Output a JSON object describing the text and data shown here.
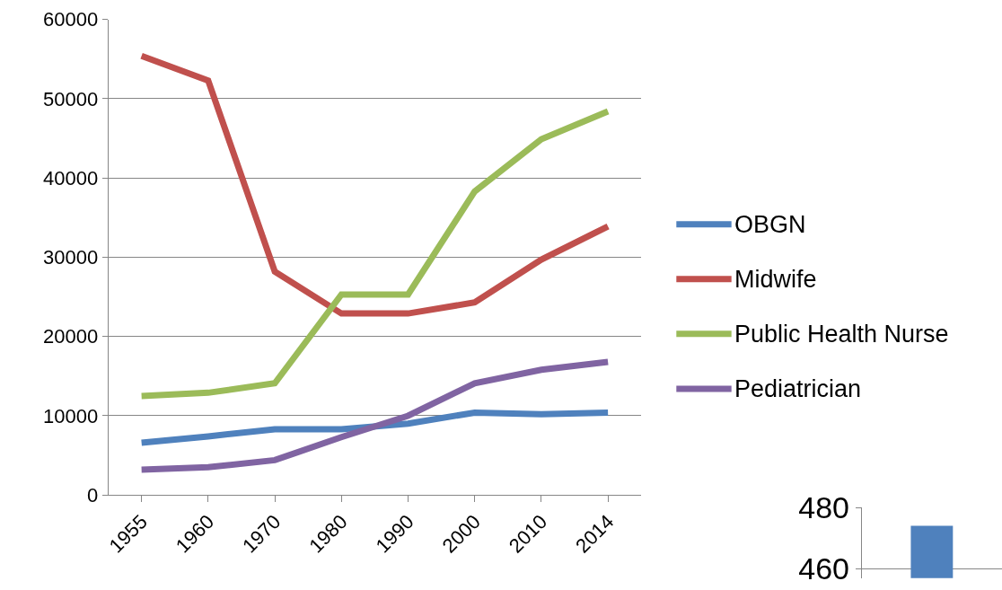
{
  "chart_data": [
    {
      "type": "line",
      "categories": [
        "1955",
        "1960",
        "1970",
        "1980",
        "1990",
        "2000",
        "2010",
        "2014"
      ],
      "ylim": [
        0,
        60000
      ],
      "yticks": [
        0,
        10000,
        20000,
        30000,
        40000,
        50000,
        60000
      ],
      "grid": "y",
      "legend": "right",
      "marker": "none",
      "line_style": "solid",
      "series": [
        {
          "name": "OBGN",
          "color": "#4f81bd",
          "values": [
            6600,
            7400,
            8300,
            8300,
            9000,
            10400,
            10200,
            10400
          ]
        },
        {
          "name": "Midwife",
          "color": "#c0504d",
          "values": [
            55400,
            52300,
            28200,
            22900,
            22900,
            24300,
            29700,
            33900
          ]
        },
        {
          "name": "Public Health Nurse",
          "color": "#9bbb59",
          "values": [
            12500,
            12900,
            14100,
            25300,
            25300,
            38300,
            44900,
            48400
          ]
        },
        {
          "name": "Pediatrician",
          "color": "#8064a2",
          "values": [
            3200,
            3500,
            4400,
            7300,
            10000,
            14100,
            15800,
            16800
          ]
        }
      ]
    },
    {
      "type": "bar",
      "categories": [
        null
      ],
      "values": [
        474
      ],
      "color": "#4f81bd",
      "ylim": [
        457,
        480
      ],
      "yticks": [
        460,
        480
      ],
      "grid": "y",
      "tick_labels": "y"
    }
  ]
}
